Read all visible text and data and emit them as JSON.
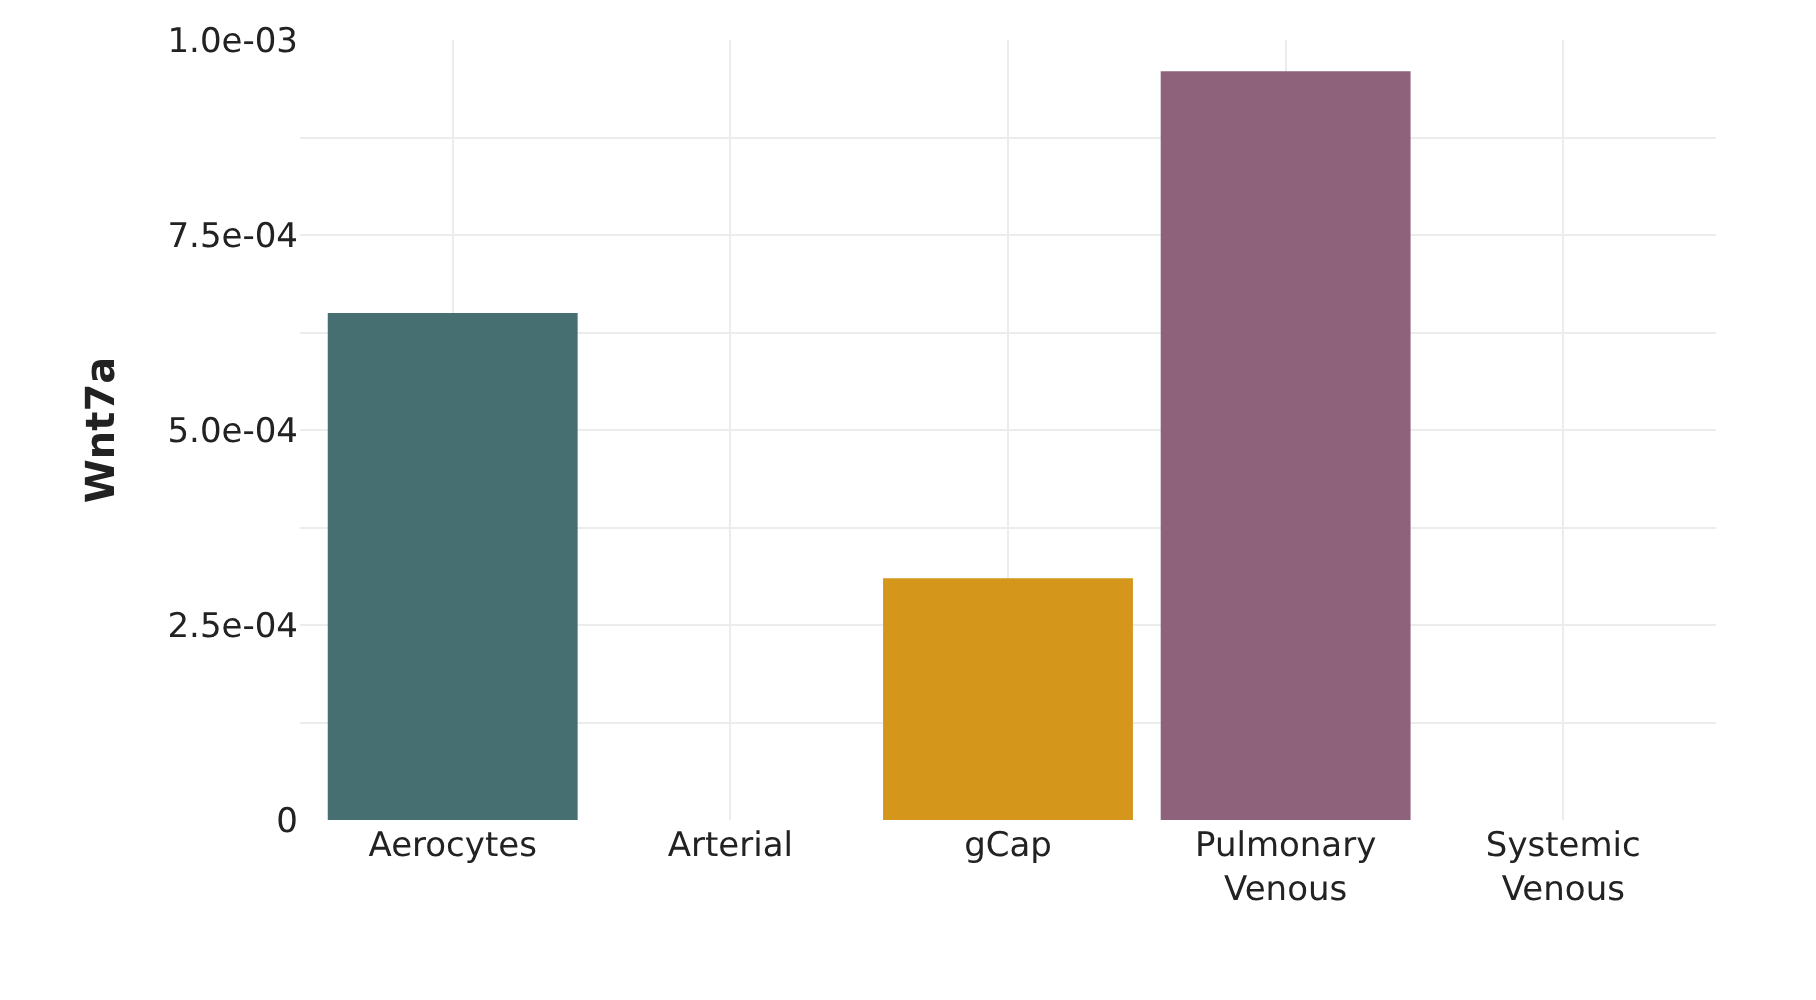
{
  "chart_data": {
    "type": "bar",
    "ylabel": "Wnt7a",
    "categories": [
      "Aerocytes",
      "Arterial",
      "gCap",
      "Pulmonary\nVenous",
      "Systemic\nVenous"
    ],
    "values": [
      0.00065,
      0,
      0.00031,
      0.00096,
      0
    ],
    "colors": [
      "#466f72",
      null,
      "#d4971c",
      "#8e627b",
      null
    ],
    "ylim": [
      0,
      0.001
    ],
    "yticks": [
      {
        "value": 0,
        "label": "0"
      },
      {
        "value": 0.000125,
        "label": null
      },
      {
        "value": 0.00025,
        "label": "2.5e-04"
      },
      {
        "value": 0.000375,
        "label": null
      },
      {
        "value": 0.0005,
        "label": "5.0e-04"
      },
      {
        "value": 0.000625,
        "label": null
      },
      {
        "value": 0.00075,
        "label": "7.5e-04"
      },
      {
        "value": 0.000875,
        "label": null
      },
      {
        "value": 0.001,
        "label": "1.0e-03"
      }
    ],
    "grid": true,
    "legend": false
  }
}
